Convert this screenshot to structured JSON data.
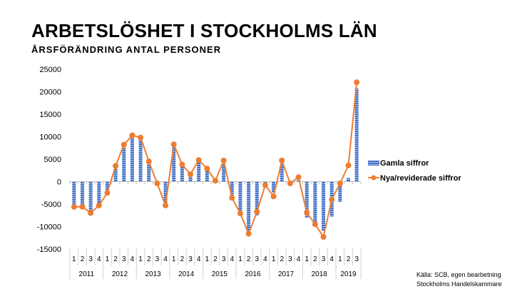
{
  "title": "ARBETSLÖSHET I STOCKHOLMS LÄN",
  "subtitle": "ÅRSFÖRÄNDRING ANTAL PERSONER",
  "source": [
    "Källa: SCB, egen bearbetning",
    "Stockholms Handelskammare"
  ],
  "chart_data": {
    "type": "bar+line",
    "title": "ARBETSLÖSHET I STOCKHOLMS LÄN",
    "ylim": [
      -15000,
      25000
    ],
    "yticks": [
      25000,
      20000,
      15000,
      10000,
      5000,
      0,
      -5000,
      -10000,
      -15000
    ],
    "years": [
      "2011",
      "2012",
      "2013",
      "2014",
      "2015",
      "2016",
      "2017",
      "2018",
      "2019"
    ],
    "quarters": [
      "1",
      "2",
      "3",
      "4",
      "1",
      "2",
      "3",
      "4",
      "1",
      "2",
      "3",
      "4",
      "1",
      "2",
      "3",
      "4",
      "1",
      "2",
      "3",
      "4",
      "1",
      "2",
      "3",
      "4",
      "1",
      "2",
      "3",
      "4",
      "1",
      "2",
      "3",
      "4",
      "1",
      "2",
      "3"
    ],
    "legend_position": "right",
    "series": [
      {
        "name": "Gamla siffror",
        "type": "bar",
        "color": "#4472C4",
        "values": [
          -5500,
          -5700,
          -7000,
          -5000,
          -2000,
          3000,
          7500,
          9800,
          9500,
          4000,
          0,
          -5300,
          8000,
          3500,
          1200,
          4200,
          2500,
          0,
          4000,
          -4000,
          -7500,
          -11500,
          -7500,
          -1000,
          -2500,
          4000,
          0,
          300,
          -8000,
          -9500,
          -11000,
          -7800,
          -4500,
          800,
          20700
        ]
      },
      {
        "name": "Nya/reviderade siffror",
        "type": "line",
        "color": "#ED7D31",
        "values": [
          -5600,
          -5600,
          -7000,
          -5300,
          -2500,
          3500,
          8200,
          10300,
          9800,
          4500,
          -400,
          -5300,
          8300,
          3800,
          1600,
          4800,
          2900,
          200,
          4700,
          -3600,
          -7100,
          -11600,
          -6700,
          -800,
          -3300,
          4700,
          -400,
          1000,
          -6900,
          -9500,
          -12300,
          -4000,
          -400,
          3600,
          22100
        ]
      }
    ]
  }
}
